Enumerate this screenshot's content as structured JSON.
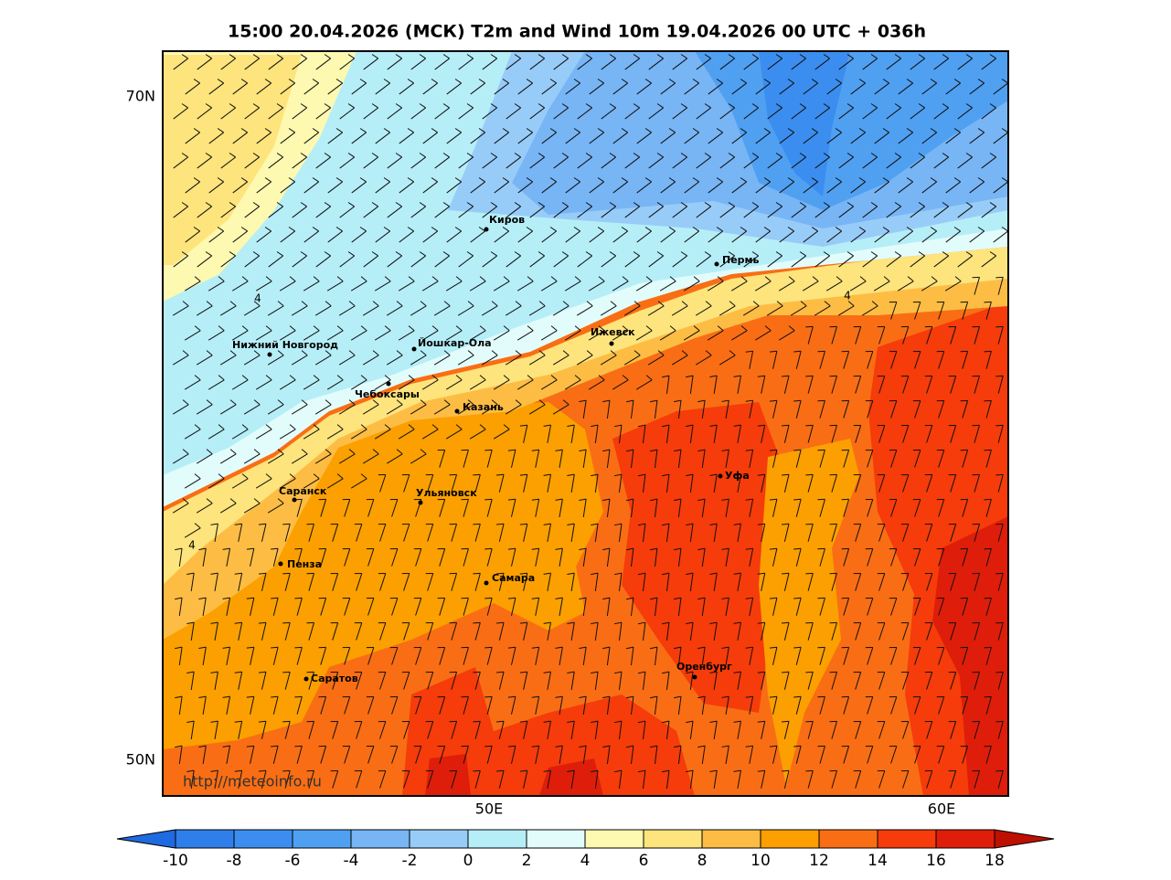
{
  "title": "15:00 20.04.2026 (МСК) T2m and Wind 10m 19.04.2026 00 UTC + 036h",
  "lat_labels": [
    "70N",
    "50N"
  ],
  "lon_labels": [
    "50E",
    "60E"
  ],
  "cities": [
    "Киров",
    "Пермь",
    "Нижний Новгород",
    "Йошкар-Ола",
    "Ижевск",
    "Чебоксары",
    "Казань",
    "Уфа",
    "Саранск",
    "Ульяновск",
    "Пенза",
    "Самара",
    "Оренбург",
    "Саратов"
  ],
  "contour_labels": [
    "4",
    "4",
    "4"
  ],
  "watermark": "http://meteoinfo.ru",
  "colorbar": {
    "ticks": [
      -10,
      -8,
      -6,
      -4,
      -2,
      0,
      2,
      4,
      6,
      8,
      10,
      12,
      14,
      16,
      18
    ],
    "colors": [
      "#1e6ae0",
      "#2f7fea",
      "#3b8eef",
      "#50a0f2",
      "#78b5f5",
      "#98ccf8",
      "#b6eef8",
      "#e2fcfc",
      "#fef9b0",
      "#fee47c",
      "#fdbd44",
      "#fba000",
      "#f96e14",
      "#f53c0a",
      "#de1e0a",
      "#be1000"
    ]
  }
}
